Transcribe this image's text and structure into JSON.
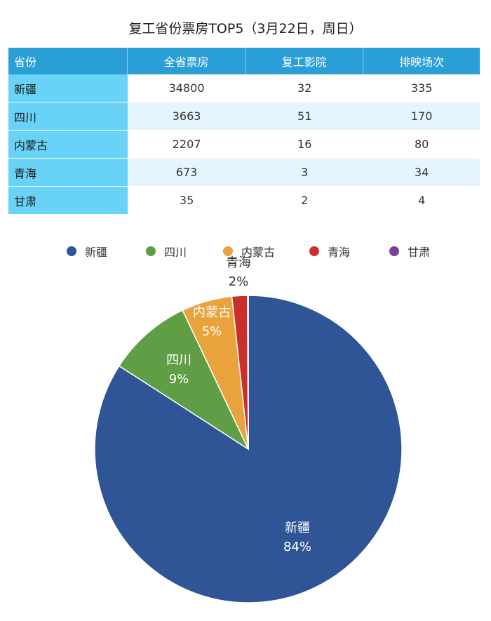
{
  "title": "复工省份票房TOP5（3月22日，周日）",
  "table": {
    "headers": [
      "省份",
      "全省票房",
      "复工影院",
      "排映场次"
    ],
    "rows": [
      {
        "province": "新疆",
        "box_office": "34800",
        "cinemas": "32",
        "screenings": "335"
      },
      {
        "province": "四川",
        "box_office": "3663",
        "cinemas": "51",
        "screenings": "170"
      },
      {
        "province": "内蒙古",
        "box_office": "2207",
        "cinemas": "16",
        "screenings": "80"
      },
      {
        "province": "青海",
        "box_office": "673",
        "cinemas": "3",
        "screenings": "34"
      },
      {
        "province": "甘肃",
        "box_office": "35",
        "cinemas": "2",
        "screenings": "4"
      }
    ]
  },
  "chart_data": {
    "type": "pie",
    "legend_position": "top",
    "categories": [
      "新疆",
      "四川",
      "内蒙古",
      "青海",
      "甘肃"
    ],
    "values": [
      34800,
      3663,
      2207,
      673,
      35
    ],
    "percent_labels": [
      "84%",
      "9%",
      "5%",
      "2%",
      ""
    ],
    "colors": [
      "#2f5597",
      "#5f9e45",
      "#e8a33d",
      "#c9302c",
      "#7b3f9a"
    ]
  }
}
